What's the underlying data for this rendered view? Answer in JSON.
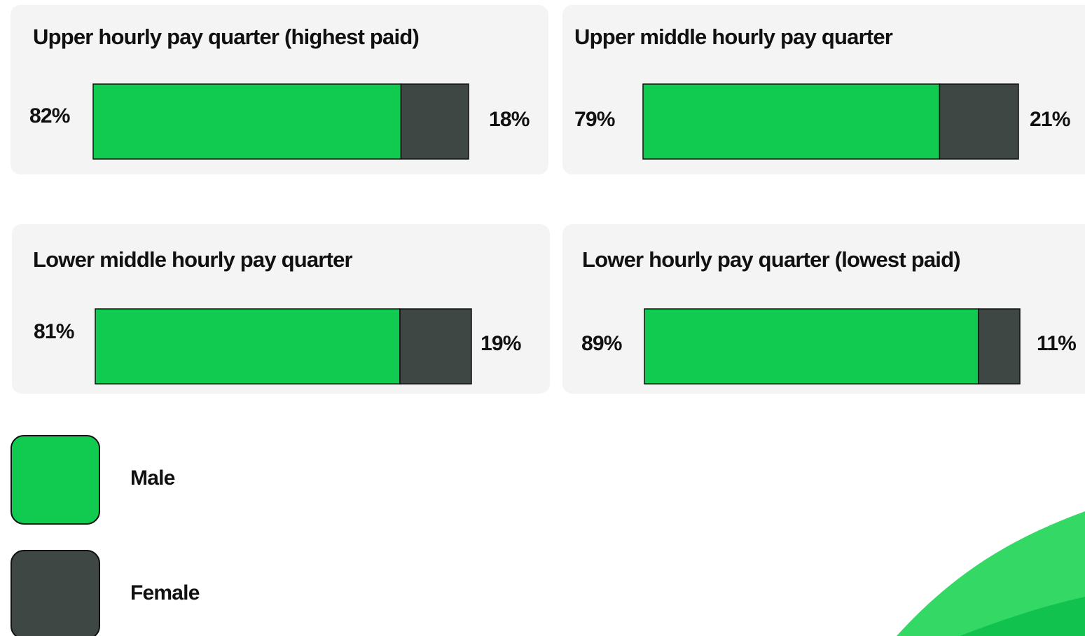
{
  "chart_data": {
    "type": "bar",
    "orientation": "horizontal",
    "stacked": true,
    "categories": [
      "Upper hourly pay quarter (highest paid)",
      "Upper middle hourly pay quarter",
      "Lower middle hourly pay quarter",
      "Lower hourly pay quarter (lowest paid)"
    ],
    "series": [
      {
        "name": "Male",
        "color": "#10cb4f",
        "values": [
          82,
          79,
          81,
          89
        ],
        "value_labels": [
          "82%",
          "79%",
          "81%",
          "89%"
        ]
      },
      {
        "name": "Female",
        "color": "#3f4745",
        "values": [
          18,
          21,
          19,
          11
        ],
        "value_labels": [
          "18%",
          "21%",
          "19%",
          "11%"
        ]
      }
    ],
    "xlim": [
      0,
      100
    ]
  }
}
